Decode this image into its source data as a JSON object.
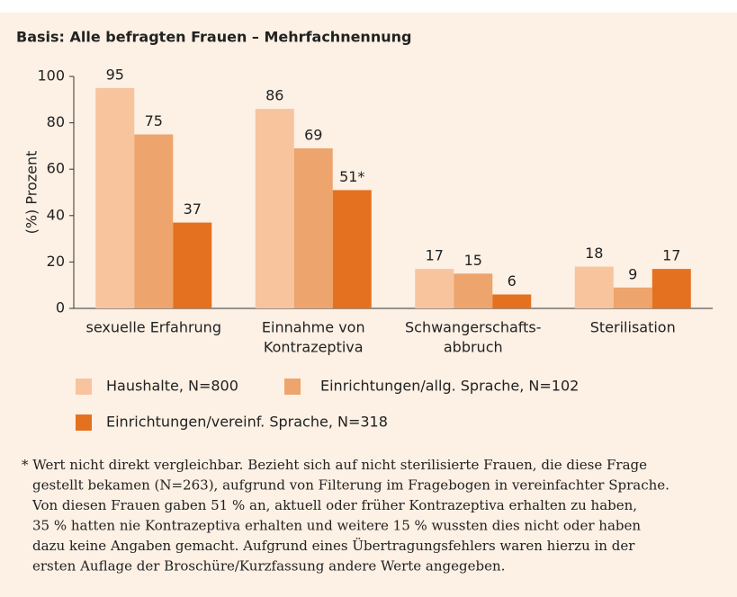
{
  "chart_data": {
    "type": "bar",
    "title": "Basis: Alle befragten Frauen – Mehrfachnennung",
    "y_label": "(%) Prozent",
    "categories": [
      [
        "sexuelle Erfahrung"
      ],
      [
        "Einnahme von",
        "Kontrazeptiva"
      ],
      [
        "Schwangerschafts-",
        "abbruch"
      ],
      [
        "Sterilisation"
      ]
    ],
    "series": [
      {
        "name": "Haushalte, N=800",
        "color": "#f7c49e",
        "values": [
          95,
          86,
          17,
          18
        ]
      },
      {
        "name": "Einrichtungen/allg. Sprache, N=102",
        "color": "#eea46d",
        "values": [
          75,
          69,
          15,
          9
        ]
      },
      {
        "name": "Einrichtungen/vereinf. Sprache, N=318",
        "color": "#e4711f",
        "values": [
          37,
          51,
          6,
          17
        ],
        "value_labels": [
          "37",
          "51*",
          "6",
          "17"
        ]
      }
    ],
    "ylim": [
      0,
      100
    ],
    "yticks": [
      0,
      20,
      40,
      60,
      80,
      100
    ],
    "footnote": [
      "* Wert nicht direkt vergleichbar. Bezieht sich auf nicht sterilisierte Frauen, die diese Frage",
      "gestellt bekamen (N=263), aufgrund von Filterung im Fragebogen in vereinfachter Sprache.",
      "Von diesen Frauen gaben 51 % an, aktuell oder früher Kontrazeptiva erhalten zu haben,",
      "35 % hatten nie Kontrazeptiva erhalten  und weitere 15 % wussten dies nicht oder haben",
      "dazu keine Angaben gemacht. Aufgrund eines Übertragungsfehlers waren hierzu in der",
      "ersten Auflage der Broschüre/Kurzfassung  andere Werte angegeben."
    ]
  }
}
